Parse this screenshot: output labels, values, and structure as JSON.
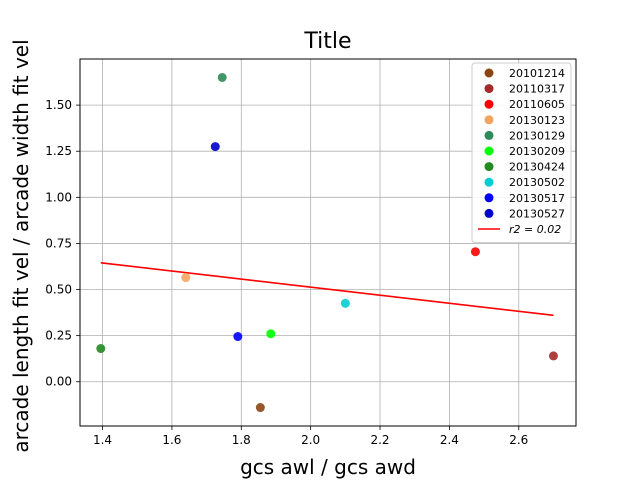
{
  "chart_data": {
    "type": "scatter",
    "title": "Title",
    "xlabel": "gcs awl / gcs awd",
    "ylabel": "arcade length fit vel / arcade width fit vel",
    "xlim": [
      1.335,
      2.765
    ],
    "ylim": [
      -0.24,
      1.75
    ],
    "x_ticks": [
      1.4,
      1.6,
      1.8,
      2.0,
      2.2,
      2.4,
      2.6
    ],
    "x_tick_labels": [
      "1.4",
      "1.6",
      "1.8",
      "2.0",
      "2.2",
      "2.4",
      "2.6"
    ],
    "y_ticks": [
      0.0,
      0.25,
      0.5,
      0.75,
      1.0,
      1.25,
      1.5
    ],
    "y_tick_labels": [
      "0.00",
      "0.25",
      "0.50",
      "0.75",
      "1.00",
      "1.25",
      "1.50"
    ],
    "grid": true,
    "legend_position": "top-right",
    "series": [
      {
        "name": "20101214",
        "color": "#8b4513",
        "x": 1.855,
        "y": -0.14
      },
      {
        "name": "20110317",
        "color": "#a52a2a",
        "x": 2.7,
        "y": 0.14
      },
      {
        "name": "20110605",
        "color": "#ff0000",
        "x": 2.475,
        "y": 0.705
      },
      {
        "name": "20130123",
        "color": "#f4a460",
        "x": 1.64,
        "y": 0.565
      },
      {
        "name": "20130129",
        "color": "#2e8b57",
        "x": 1.745,
        "y": 1.65
      },
      {
        "name": "20130209",
        "color": "#00ff00",
        "x": 1.885,
        "y": 0.26
      },
      {
        "name": "20130424",
        "color": "#228b22",
        "x": 1.395,
        "y": 0.18
      },
      {
        "name": "20130502",
        "color": "#00ced1",
        "x": 2.1,
        "y": 0.425
      },
      {
        "name": "20130517",
        "color": "#0000ff",
        "x": 1.79,
        "y": 0.245
      },
      {
        "name": "20130527",
        "color": "#0000cd",
        "x": 1.725,
        "y": 1.275
      }
    ],
    "fit_line": {
      "label": "r2 = 0.02",
      "color": "#ff0000",
      "x": [
        1.395,
        2.7
      ],
      "y": [
        0.645,
        0.36
      ]
    }
  }
}
